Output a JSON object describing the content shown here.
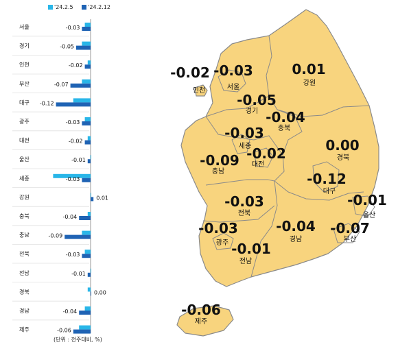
{
  "chart_data": {
    "type": "bar",
    "orientation": "horizontal",
    "categories": [
      "서울",
      "경기",
      "인천",
      "부산",
      "대구",
      "광주",
      "대전",
      "울산",
      "세종",
      "강원",
      "충북",
      "충남",
      "전북",
      "전남",
      "경북",
      "경남",
      "제주"
    ],
    "series": [
      {
        "name": "'24.2.5",
        "color": "#29b6e8",
        "values": [
          -0.02,
          -0.03,
          -0.01,
          -0.03,
          -0.06,
          -0.02,
          -0.01,
          0.0,
          -0.13,
          0.0,
          -0.01,
          -0.03,
          -0.02,
          0.0,
          -0.01,
          -0.02,
          -0.04
        ]
      },
      {
        "name": "'24.2.12",
        "color": "#1f63b4",
        "values": [
          -0.03,
          -0.05,
          -0.02,
          -0.07,
          -0.12,
          -0.03,
          -0.02,
          -0.01,
          -0.03,
          0.01,
          -0.04,
          -0.09,
          -0.03,
          -0.01,
          0.0,
          -0.04,
          -0.06
        ]
      }
    ],
    "labels": [
      "-0.03",
      "-0.05",
      "-0.02",
      "-0.07",
      "-0.12",
      "-0.03",
      "-0.02",
      "-0.01",
      "-0.03",
      "0.01",
      "-0.04",
      "-0.09",
      "-0.03",
      "-0.01",
      "0.00",
      "-0.04",
      "-0.06"
    ],
    "note": "(단위 : 전주대비, %)"
  },
  "map": {
    "colors": {
      "fill": "#f8d47e",
      "stroke": "#8a8a8a"
    },
    "regions": [
      {
        "name": "인천",
        "value": "-0.02"
      },
      {
        "name": "서울",
        "value": "-0.03"
      },
      {
        "name": "강원",
        "value": "0.01"
      },
      {
        "name": "경기",
        "value": "-0.05"
      },
      {
        "name": "충북",
        "value": "-0.04"
      },
      {
        "name": "세종",
        "value": "-0.03"
      },
      {
        "name": "충남",
        "value": "-0.09"
      },
      {
        "name": "대전",
        "value": "-0.02"
      },
      {
        "name": "경북",
        "value": "0.00"
      },
      {
        "name": "대구",
        "value": "-0.12"
      },
      {
        "name": "전북",
        "value": "-0.03"
      },
      {
        "name": "울산",
        "value": "-0.01"
      },
      {
        "name": "광주",
        "value": "-0.03"
      },
      {
        "name": "경남",
        "value": "-0.04"
      },
      {
        "name": "부산",
        "value": "-0.07"
      },
      {
        "name": "전남",
        "value": "-0.01"
      },
      {
        "name": "제주",
        "value": "-0.06"
      }
    ]
  }
}
